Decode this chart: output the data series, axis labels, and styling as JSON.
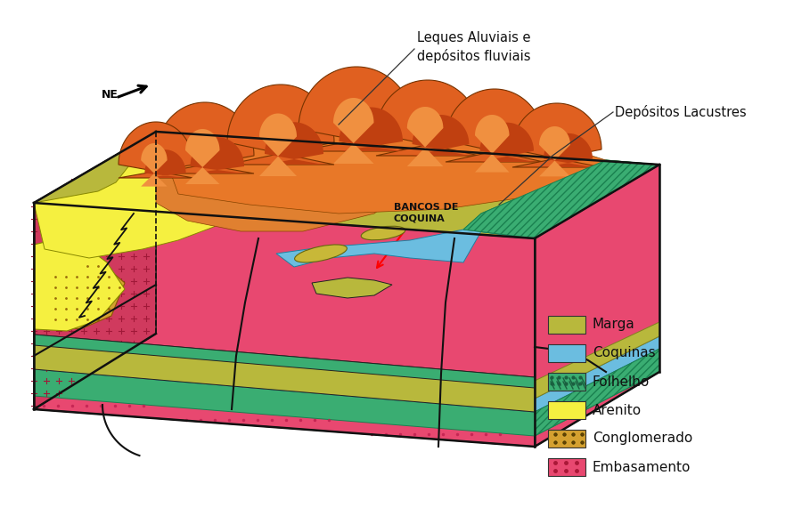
{
  "bg_color": "#ffffff",
  "legend_items": [
    {
      "label": "Marga",
      "color": "#b8b83c"
    },
    {
      "label": "Coquinas",
      "color": "#6bbde0"
    },
    {
      "label": "Folhelho",
      "color": "#3aad72"
    },
    {
      "label": "Arenito",
      "color": "#f5f040"
    },
    {
      "label": "Conglomerado",
      "color": "#d4a030"
    },
    {
      "label": "Embasamento",
      "color": "#e84870"
    }
  ],
  "annotation_bancos": "BANCOS DE\nCOQUINA",
  "annotation_leques": "Leques Aluviais e\ndepósitos fluviais",
  "annotation_depositos": "Depósitos Lacustres",
  "annotation_ne": "NE"
}
